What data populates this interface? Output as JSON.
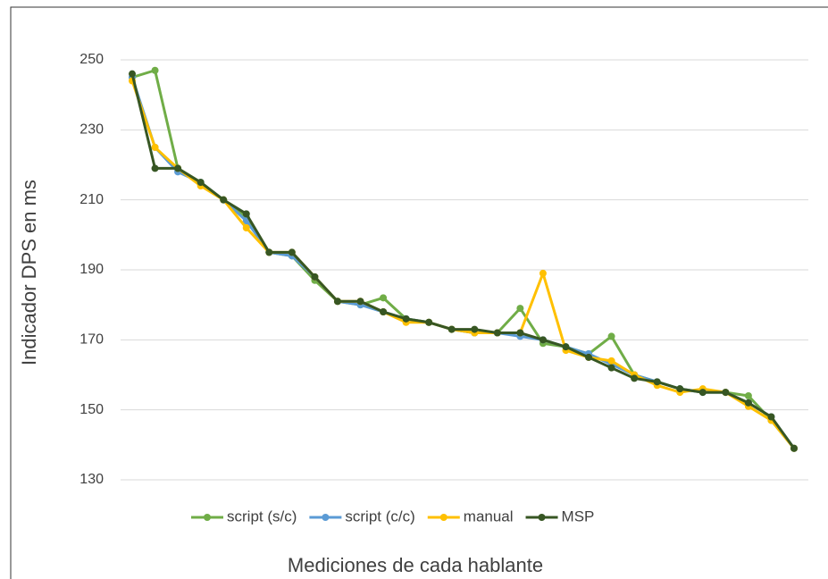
{
  "chart_data": {
    "type": "line",
    "x_label": "Mediciones de cada hablante",
    "y_label": "Indicador DPS en ms",
    "categories": [
      null,
      null,
      null,
      null,
      null,
      null,
      null,
      null,
      null,
      null,
      null,
      null,
      null,
      null,
      null,
      null,
      null,
      null,
      null,
      null,
      null,
      null,
      null,
      null,
      null,
      null,
      null,
      null,
      null,
      null
    ],
    "series": [
      {
        "name": "script (s/c)",
        "color": "#70ad47",
        "values": [
          245,
          247,
          219,
          215,
          210,
          205,
          195,
          194,
          187,
          181,
          180,
          182,
          176,
          175,
          173,
          172,
          172,
          179,
          169,
          168,
          166,
          171,
          160,
          158,
          156,
          155,
          155,
          154,
          147,
          139
        ]
      },
      {
        "name": "script (c/c)",
        "color": "#5b9bd5",
        "values": [
          245,
          225,
          218,
          215,
          210,
          204,
          195,
          194,
          188,
          181,
          180,
          178,
          176,
          175,
          173,
          172,
          172,
          171,
          170,
          168,
          166,
          163,
          160,
          158,
          156,
          155,
          155,
          152,
          148,
          139
        ]
      },
      {
        "name": "manual",
        "color": "#ffc000",
        "values": [
          244,
          225,
          219,
          214,
          210,
          202,
          195,
          195,
          188,
          181,
          181,
          178,
          175,
          175,
          173,
          172,
          172,
          172,
          189,
          167,
          165,
          164,
          160,
          157,
          155,
          156,
          155,
          151,
          147,
          139
        ]
      },
      {
        "name": "MSP",
        "color": "#375623",
        "values": [
          246,
          219,
          219,
          215,
          210,
          206,
          195,
          195,
          188,
          181,
          181,
          178,
          176,
          175,
          173,
          173,
          172,
          172,
          170,
          168,
          165,
          162,
          159,
          158,
          156,
          155,
          155,
          152,
          148,
          139
        ]
      }
    ],
    "ylim": [
      125,
      256
    ],
    "yticks": [
      130,
      150,
      170,
      190,
      210,
      230,
      250
    ],
    "grid": true,
    "legend": "bottom"
  }
}
